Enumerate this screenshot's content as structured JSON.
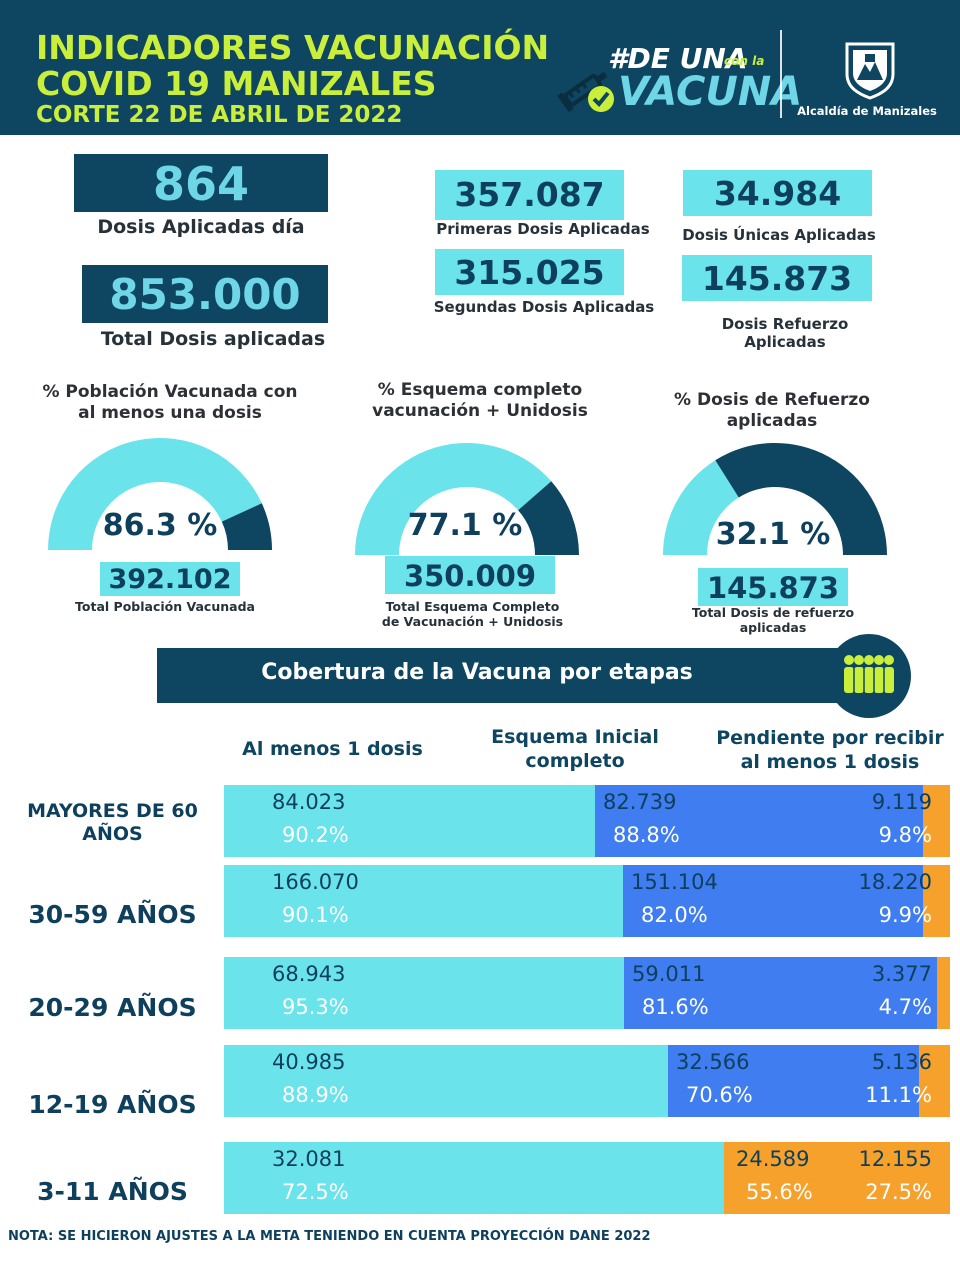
{
  "header": {
    "title_line1": "INDICADORES VACUNACIÓN",
    "title_line2": "COVID 19 MANIZALES",
    "title_line3": "CORTE 22 DE ABRIL DE 2022",
    "logo_hash_text": "#DE UNA",
    "logo_small_text": "con la",
    "logo_big_text": "VACUNA",
    "org_name": "Alcaldía de Manizales"
  },
  "stats": {
    "dosis_dia_value": "864",
    "dosis_dia_label": "Dosis Aplicadas día",
    "total_dosis_value": "853.000",
    "total_dosis_label": "Total Dosis aplicadas",
    "primeras_value": "357.087",
    "primeras_label": "Primeras Dosis Aplicadas",
    "unicas_value": "34.984",
    "unicas_label": "Dosis Únicas Aplicadas",
    "segundas_value": "315.025",
    "segundas_label": "Segundas Dosis Aplicadas",
    "refuerzo_value": "145.873",
    "refuerzo_label_1": "Dosis Refuerzo",
    "refuerzo_label_2": "Aplicadas"
  },
  "gauges": [
    {
      "title_1": "% Población Vacunada con",
      "title_2": "al menos una dosis",
      "percent_label": "86.3 %",
      "fraction": 0.863,
      "total_value": "392.102",
      "total_label_1": "Total Población Vacunada",
      "total_label_2": ""
    },
    {
      "title_1": "% Esquema completo",
      "title_2": "vacunación + Unidosis",
      "percent_label": "77.1 %",
      "fraction": 0.771,
      "total_value": "350.009",
      "total_label_1": "Total Esquema Completo",
      "total_label_2": "de Vacunación + Unidosis"
    },
    {
      "title_1": "% Dosis de Refuerzo",
      "title_2": "aplicadas",
      "percent_label": "32.1 %",
      "fraction": 0.321,
      "total_value": "145.873",
      "total_label_1": "Total Dosis de refuerzo",
      "total_label_2": "aplicadas"
    }
  ],
  "coverage": {
    "banner": "Cobertura de la Vacuna por etapas",
    "col_headers": {
      "first_dose": "Al menos 1 dosis",
      "complete_1": "Esquema Inicial",
      "complete_2": "completo",
      "pending_1": "Pendiente por recibir",
      "pending_2": "al menos 1 dosis"
    },
    "rows": [
      {
        "label_1": "MAYORES DE 60",
        "label_2": "AÑOS",
        "first_value": "84.023",
        "first_pct": "90.2%",
        "complete_value": "82.739",
        "complete_pct": "88.8%",
        "pending_value": "9.119",
        "pending_pct": "9.8%"
      },
      {
        "label_1": "30-59 AÑOS",
        "label_2": "",
        "first_value": "166.070",
        "first_pct": "90.1%",
        "complete_value": "151.104",
        "complete_pct": "82.0%",
        "pending_value": "18.220",
        "pending_pct": "9.9%"
      },
      {
        "label_1": "20-29 AÑOS",
        "label_2": "",
        "first_value": "68.943",
        "first_pct": "95.3%",
        "complete_value": "59.011",
        "complete_pct": "81.6%",
        "pending_value": "3.377",
        "pending_pct": "4.7%"
      },
      {
        "label_1": "12-19 AÑOS",
        "label_2": "",
        "first_value": "40.985",
        "first_pct": "88.9%",
        "complete_value": "32.566",
        "complete_pct": "70.6%",
        "pending_value": "5.136",
        "pending_pct": "11.1%"
      },
      {
        "label_1": "3-11 AÑOS",
        "label_2": "",
        "first_value": "32.081",
        "first_pct": "72.5%",
        "complete_value": "24.589",
        "complete_pct": "55.6%",
        "pending_value": "12.155",
        "pending_pct": "27.5%"
      }
    ]
  },
  "note": "NOTA: SE HICIERON AJUSTES A LA META TENIENDO EN CUENTA PROYECCIÓN DANE 2022",
  "colors": {
    "navy": "#0e4560",
    "cyan": "#6ae3ea",
    "blue": "#3f7df0",
    "orange": "#f5a12c",
    "lime": "#c9ef3a"
  }
}
